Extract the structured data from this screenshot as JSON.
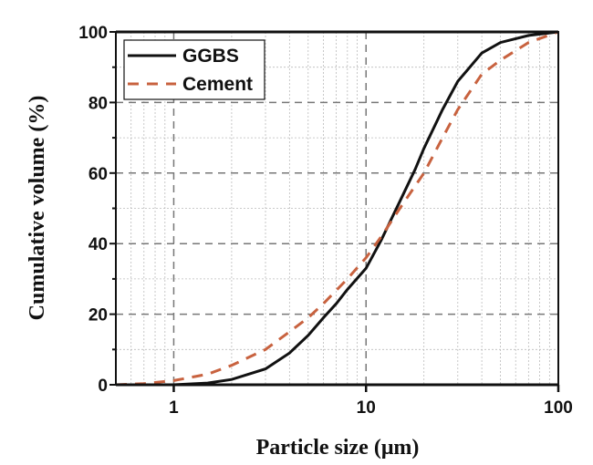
{
  "chart_data": {
    "type": "line",
    "title": "",
    "xlabel": "Particle size (μm)",
    "ylabel": "Cumulative volume (%)",
    "xscale": "log",
    "xlim": [
      0.5,
      100
    ],
    "ylim": [
      0,
      100
    ],
    "xticks": [
      1,
      10,
      100
    ],
    "xtick_labels": [
      "1",
      "10",
      "100"
    ],
    "yticks": [
      0,
      20,
      40,
      60,
      80,
      100
    ],
    "ytick_labels": [
      "0",
      "20",
      "40",
      "60",
      "80",
      "100"
    ],
    "grid": true,
    "legend_position": "top-left",
    "series": [
      {
        "name": "GGBS",
        "color": "#111111",
        "style": "solid",
        "x": [
          0.5,
          1,
          1.5,
          2,
          3,
          4,
          5,
          6,
          7,
          8,
          10,
          12,
          15,
          18,
          20,
          25,
          30,
          40,
          50,
          70,
          100
        ],
        "y": [
          0,
          0,
          0.5,
          1.5,
          4.5,
          9,
          14,
          19,
          23,
          27,
          33,
          41,
          52,
          61,
          67,
          78,
          86,
          94,
          97,
          99,
          100
        ]
      },
      {
        "name": "Cement",
        "color": "#c8623f",
        "style": "dashed",
        "x": [
          0.5,
          0.7,
          1,
          1.5,
          2,
          3,
          4,
          5,
          6,
          8,
          10,
          12,
          15,
          20,
          25,
          30,
          40,
          50,
          70,
          100
        ],
        "y": [
          0,
          0.3,
          1.2,
          3,
          5.5,
          10,
          15,
          19,
          23,
          30,
          36,
          42,
          50,
          60,
          70,
          78,
          88,
          92,
          97,
          100
        ]
      }
    ]
  }
}
